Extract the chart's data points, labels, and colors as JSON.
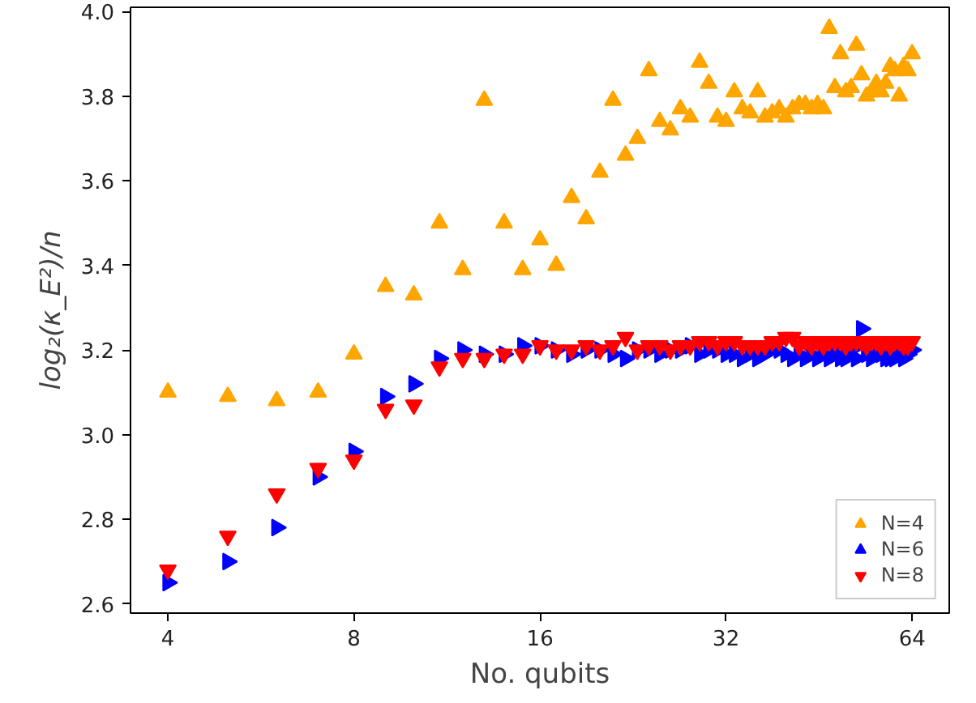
{
  "chart_data": {
    "type": "scatter",
    "xlabel": "No. qubits",
    "ylabel": "log₂(κ_E²)/n",
    "log": "x",
    "grid": false,
    "legend": "bottom right",
    "xlim": [
      3.48,
      73.5
    ],
    "xticks": [
      4,
      8,
      16,
      32,
      64
    ],
    "ylim": [
      2.578,
      4.01
    ],
    "yticks": [
      2.6,
      2.8,
      {
        "value": 3,
        "label": "3.0"
      },
      3.2,
      3.4,
      3.6,
      3.8,
      {
        "value": 4,
        "label": "4.0"
      }
    ],
    "x": [
      4,
      5,
      6,
      7,
      8,
      9,
      10,
      11,
      12,
      13,
      14,
      15,
      16,
      17,
      18,
      19,
      20,
      21,
      22,
      23,
      24,
      25,
      26,
      27,
      28,
      29,
      30,
      31,
      32,
      33,
      34,
      35,
      36,
      37,
      38,
      39,
      40,
      41,
      42,
      43,
      44,
      45,
      46,
      47,
      48,
      49,
      50,
      51,
      52,
      53,
      54,
      55,
      56,
      57,
      58,
      59,
      60,
      61,
      62,
      63,
      64
    ],
    "series": [
      {
        "name": "N=4",
        "color": "#ffa500",
        "marker": "triangle",
        "values": [
          3.1,
          3.09,
          3.08,
          3.1,
          3.19,
          3.35,
          3.33,
          3.5,
          3.39,
          3.79,
          3.5,
          3.39,
          3.46,
          3.4,
          3.56,
          3.51,
          3.62,
          3.79,
          3.66,
          3.7,
          3.86,
          3.74,
          3.72,
          3.77,
          3.75,
          3.88,
          3.83,
          3.75,
          3.74,
          3.81,
          3.77,
          3.76,
          3.81,
          3.75,
          3.76,
          3.77,
          3.75,
          3.77,
          3.78,
          3.78,
          3.77,
          3.78,
          3.77,
          3.96,
          3.82,
          3.9,
          3.81,
          3.82,
          3.92,
          3.85,
          3.8,
          3.81,
          3.83,
          3.81,
          3.83,
          3.87,
          3.86,
          3.8,
          3.87,
          3.86,
          3.9
        ]
      },
      {
        "name": "N=6",
        "color": "#0000ff",
        "marker": "triangle_right",
        "values": [
          2.65,
          2.7,
          2.78,
          2.9,
          2.96,
          3.09,
          3.12,
          3.18,
          3.2,
          3.19,
          3.19,
          3.21,
          3.21,
          3.2,
          3.19,
          3.2,
          3.2,
          3.19,
          3.18,
          3.2,
          3.2,
          3.19,
          3.2,
          3.2,
          3.21,
          3.19,
          3.2,
          3.2,
          3.19,
          3.19,
          3.18,
          3.19,
          3.18,
          3.19,
          3.2,
          3.2,
          3.19,
          3.18,
          3.19,
          3.18,
          3.19,
          3.18,
          3.19,
          3.18,
          3.2,
          3.18,
          3.18,
          3.2,
          3.18,
          3.25,
          3.19,
          3.18,
          3.2,
          3.19,
          3.18,
          3.18,
          3.18,
          3.2,
          3.18,
          3.19,
          3.2
        ]
      },
      {
        "name": "N=8",
        "color": "#ff0000",
        "marker": "triangle_down",
        "values": [
          2.68,
          2.76,
          2.86,
          2.92,
          2.94,
          3.06,
          3.07,
          3.16,
          3.18,
          3.18,
          3.19,
          3.19,
          3.21,
          3.2,
          3.2,
          3.21,
          3.2,
          3.21,
          3.23,
          3.2,
          3.21,
          3.21,
          3.2,
          3.21,
          3.21,
          3.22,
          3.22,
          3.21,
          3.22,
          3.22,
          3.21,
          3.21,
          3.21,
          3.21,
          3.22,
          3.22,
          3.23,
          3.23,
          3.21,
          3.22,
          3.21,
          3.22,
          3.21,
          3.22,
          3.22,
          3.22,
          3.21,
          3.22,
          3.22,
          3.22,
          3.21,
          3.22,
          3.22,
          3.21,
          3.22,
          3.21,
          3.22,
          3.22,
          3.21,
          3.21,
          3.22
        ]
      }
    ]
  }
}
